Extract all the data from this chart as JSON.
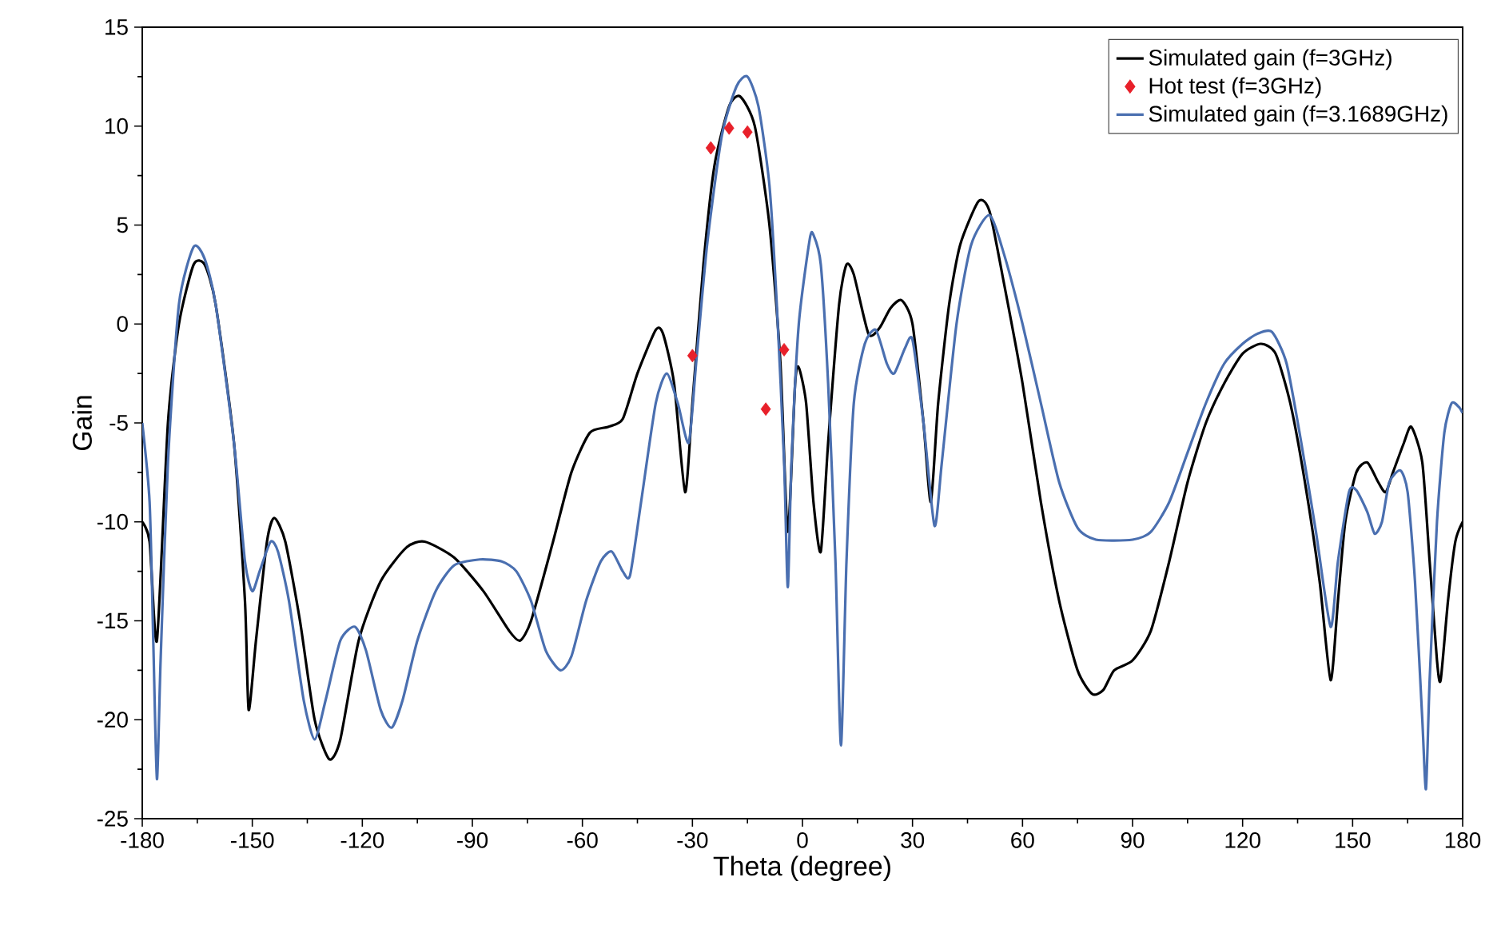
{
  "chart_data": {
    "type": "line",
    "xlabel": "Theta (degree)",
    "ylabel": "Gain",
    "xlim": [
      -180,
      180
    ],
    "ylim": [
      -25,
      15
    ],
    "xticks": [
      -180,
      -150,
      -120,
      -90,
      -60,
      -30,
      0,
      30,
      60,
      90,
      120,
      150,
      180
    ],
    "yticks": [
      -25,
      -20,
      -15,
      -10,
      -5,
      0,
      5,
      10,
      15
    ],
    "legend": "top right",
    "grid": false,
    "series": [
      {
        "name": "Simulated gain (f=3GHz)",
        "color": "#000000",
        "x": [
          -180,
          -178,
          -176,
          -173,
          -170,
          -166,
          -163,
          -160,
          -155,
          -152,
          -151,
          -149,
          -146,
          -144,
          -141,
          -137,
          -133,
          -129,
          -126,
          -121,
          -115,
          -108,
          -103,
          -95,
          -87,
          -80,
          -77,
          -74,
          -68,
          -63,
          -58,
          -53,
          -49,
          -45,
          -40,
          -38,
          -35,
          -32,
          -30,
          -27,
          -24,
          -20,
          -17,
          -13,
          -9,
          -6,
          -4,
          -2,
          -1,
          1,
          3,
          5,
          7,
          10,
          12,
          14,
          18,
          21,
          24,
          27,
          30,
          33,
          35,
          37,
          40,
          43,
          48,
          51,
          55,
          60,
          65,
          70,
          75,
          79,
          82,
          85,
          90,
          95,
          100,
          105,
          110,
          115,
          120,
          125,
          129,
          133,
          137,
          141,
          144,
          146,
          148,
          151,
          154,
          157,
          159,
          161,
          164,
          166,
          169,
          171,
          173,
          174,
          176,
          178,
          180
        ],
        "values": [
          -10,
          -11,
          -16,
          -5,
          0,
          3,
          3,
          1,
          -6,
          -14,
          -19.5,
          -16,
          -11,
          -9.8,
          -11,
          -15,
          -20,
          -22,
          -21,
          -16,
          -13,
          -11.3,
          -11,
          -11.8,
          -13.5,
          -15.5,
          -16,
          -15,
          -11,
          -7.5,
          -5.5,
          -5.2,
          -4.8,
          -2.5,
          -0.3,
          -0.5,
          -3,
          -8.5,
          -4,
          3,
          8,
          11,
          11.5,
          10,
          5,
          -2,
          -10.5,
          -3,
          -2.2,
          -4,
          -9,
          -11.5,
          -6,
          1,
          3,
          2.5,
          -0.5,
          -0.2,
          0.8,
          1.2,
          0,
          -5,
          -9,
          -4,
          1,
          4,
          6.2,
          5.7,
          2,
          -3,
          -9,
          -14,
          -17.5,
          -18.7,
          -18.5,
          -17.5,
          -17,
          -15.5,
          -12,
          -8,
          -5,
          -3,
          -1.5,
          -1,
          -1.5,
          -4,
          -8,
          -13,
          -18,
          -14,
          -10,
          -7.5,
          -7,
          -8,
          -8.5,
          -7.5,
          -6,
          -5.2,
          -7,
          -12,
          -17,
          -18,
          -14,
          -11,
          -10
        ]
      },
      {
        "name": "Hot test (f=3GHz)",
        "type": "scatter",
        "marker": "diamond",
        "color": "#e8202a",
        "x": [
          -30,
          -25,
          -20,
          -15,
          -10,
          -5
        ],
        "values": [
          -1.6,
          8.9,
          9.9,
          9.7,
          -4.3,
          -1.3
        ]
      },
      {
        "name": "Simulated gain (f=3.1689GHz)",
        "color": "#4a6fb0",
        "x": [
          -180,
          -178,
          -177,
          -176,
          -175,
          -173,
          -170,
          -166,
          -163,
          -160,
          -155,
          -152,
          -150,
          -148,
          -145,
          -143,
          -140,
          -136,
          -133,
          -130,
          -126,
          -122,
          -119,
          -115,
          -112,
          -109,
          -105,
          -100,
          -95,
          -88,
          -82,
          -78,
          -74,
          -70,
          -66,
          -63,
          -59,
          -55,
          -52,
          -49,
          -47,
          -44,
          -40,
          -37,
          -34,
          -31,
          -29,
          -26,
          -22,
          -18,
          -15,
          -12,
          -9,
          -7,
          -5,
          -4,
          -3,
          -1,
          2,
          3,
          5,
          7,
          9,
          10.5,
          12,
          14,
          17,
          20,
          23,
          25,
          28,
          30,
          33,
          36,
          38,
          42,
          46,
          51,
          55,
          60,
          65,
          70,
          75,
          80,
          90,
          95,
          100,
          105,
          110,
          115,
          120,
          124,
          128,
          132,
          136,
          140,
          144,
          146,
          149,
          151,
          154,
          156,
          158,
          160,
          163,
          165,
          167,
          169,
          170,
          171,
          173,
          175,
          177,
          179,
          180
        ],
        "values": [
          -5,
          -9,
          -16,
          -23,
          -17,
          -7,
          1,
          3.9,
          3.3,
          1,
          -6,
          -12,
          -13.5,
          -12.5,
          -11,
          -11.5,
          -14,
          -19,
          -21,
          -19,
          -16,
          -15.3,
          -16.5,
          -19.5,
          -20.4,
          -19,
          -16,
          -13.5,
          -12.2,
          -11.9,
          -12,
          -12.5,
          -14,
          -16.5,
          -17.5,
          -16.8,
          -14,
          -12,
          -11.5,
          -12.5,
          -12.7,
          -9,
          -4,
          -2.5,
          -4,
          -6,
          -2,
          4,
          9.5,
          12,
          12.5,
          11,
          7,
          1,
          -7,
          -13.3,
          -7,
          0,
          4.3,
          4.5,
          3,
          -3,
          -12,
          -21.3,
          -12,
          -4,
          -1,
          -0.3,
          -2,
          -2.5,
          -1.2,
          -0.8,
          -5,
          -10.2,
          -7,
          0,
          4,
          5.5,
          3.5,
          0,
          -4,
          -8,
          -10.3,
          -10.9,
          -10.9,
          -10.5,
          -9,
          -6.5,
          -4,
          -2,
          -1,
          -0.5,
          -0.4,
          -2,
          -6,
          -10.5,
          -15.3,
          -12,
          -8.5,
          -8.4,
          -9.5,
          -10.6,
          -10,
          -8,
          -7.4,
          -8.5,
          -13,
          -20,
          -23.5,
          -18,
          -10,
          -5.5,
          -4,
          -4.2,
          -4.5
        ]
      }
    ]
  }
}
